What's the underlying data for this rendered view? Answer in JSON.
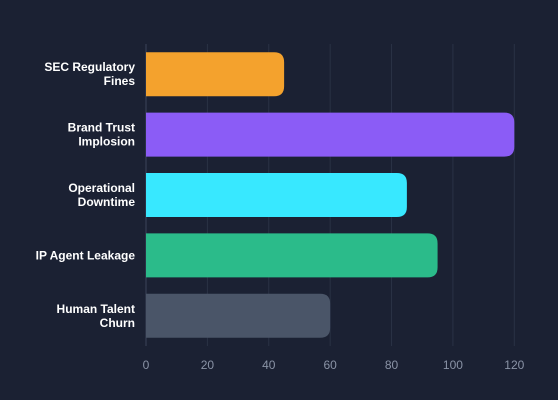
{
  "chart_data": {
    "type": "bar",
    "orientation": "horizontal",
    "categories": [
      [
        "SEC Regulatory",
        "Fines"
      ],
      [
        "Brand Trust",
        "Implosion"
      ],
      [
        "Operational",
        "Downtime"
      ],
      [
        "IP Agent Leakage"
      ],
      [
        "Human Talent",
        "Churn"
      ]
    ],
    "values": [
      45,
      120,
      85,
      95,
      60
    ],
    "colors": [
      "#f4a22d",
      "#8b5cf6",
      "#38e8ff",
      "#2bbb8a",
      "#4a5568"
    ],
    "xlim": [
      0,
      130
    ],
    "xticks": [
      0,
      20,
      40,
      60,
      80,
      100,
      120
    ],
    "grid": true,
    "title": "",
    "xlabel": "",
    "ylabel": ""
  }
}
